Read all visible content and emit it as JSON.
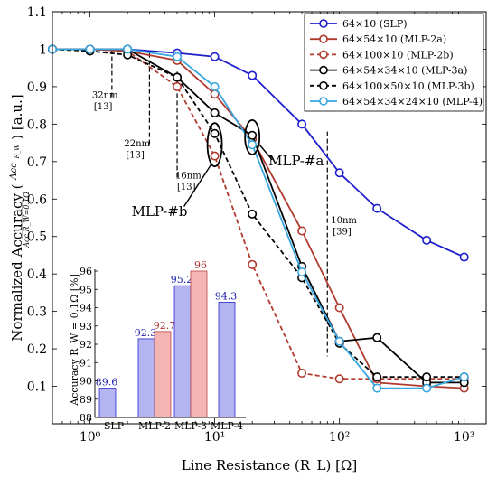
{
  "chart_data": {
    "type": "line",
    "xlabel": "Line Resistance (R_L) [Ω]",
    "ylabel": "Normalized Accuracy",
    "ylabel_unit": "[a.u.]",
    "x_scale": "log",
    "xlim": [
      0.5,
      1500
    ],
    "ylim": [
      0,
      1.1
    ],
    "x_ticks": [
      1,
      10,
      100,
      1000
    ],
    "x_tick_labels": [
      "10⁰",
      "10¹",
      "10²",
      "10³"
    ],
    "y_ticks": [
      0,
      0.1,
      0.2,
      0.3,
      0.4,
      0.5,
      0.6,
      0.7,
      0.8,
      0.9,
      1,
      1.1
    ],
    "y_tick_labels": [
      "",
      "0.1",
      "0.2",
      "0.3",
      "0.4",
      "0.5",
      "0.6",
      "0.7",
      "0.8",
      "0.9",
      "1",
      "1.1"
    ],
    "legend_position": "top-right",
    "x": [
      0.5,
      1,
      2,
      5,
      10,
      20,
      50,
      100,
      200,
      500,
      1000
    ],
    "series": [
      {
        "name": "64×10 (SLP)",
        "color": "#1f1fcc",
        "dash": "solid",
        "values": [
          1.0,
          1.0,
          1.0,
          0.99,
          0.98,
          0.93,
          0.8,
          0.67,
          0.575,
          0.49,
          0.445
        ]
      },
      {
        "name": "64×54×10 (MLP-2a)",
        "color": "#b03a2e",
        "dash": "solid",
        "values": [
          1.0,
          1.0,
          0.995,
          0.97,
          0.88,
          0.76,
          0.515,
          0.31,
          0.11,
          0.1,
          0.095
        ]
      },
      {
        "name": "64×100×10 (MLP-2b)",
        "color": "#b03a2e",
        "dash": "dashed",
        "values": [
          1.0,
          1.0,
          0.995,
          0.9,
          0.715,
          0.425,
          0.135,
          0.12,
          0.12,
          0.12,
          0.12
        ]
      },
      {
        "name": "64×54×34×10 (MLP-3a)",
        "color": "#000000",
        "dash": "solid",
        "values": [
          1.0,
          1.0,
          1.0,
          0.925,
          0.83,
          0.77,
          0.42,
          0.22,
          0.23,
          0.11,
          0.11
        ]
      },
      {
        "name": "64×100×50×10 (MLP-3b)",
        "color": "#000000",
        "dash": "dashed",
        "values": [
          1.0,
          0.995,
          0.985,
          0.925,
          0.775,
          0.56,
          0.39,
          0.215,
          0.125,
          0.125,
          0.125
        ]
      },
      {
        "name": "64×54×34×24×10 (MLP-4)",
        "color": "#3aa6e0",
        "dash": "solid",
        "values": [
          1.0,
          1.0,
          1.0,
          0.98,
          0.9,
          0.745,
          0.405,
          0.22,
          0.095,
          0.095,
          0.125
        ]
      }
    ],
    "annotations": [
      {
        "label": "32nm",
        "ref": "[13]",
        "x": 1.5,
        "y_from": 1.0,
        "y_to": 0.87
      },
      {
        "label": "22nm",
        "ref": "[13]",
        "x": 3,
        "y_from": 0.99,
        "y_to": 0.74
      },
      {
        "label": "16nm",
        "ref": "[13]",
        "x": 5,
        "y_from": 0.94,
        "y_to": 0.65
      },
      {
        "label": "10nm",
        "ref": "[39]",
        "x": 80,
        "y_from": 0.78,
        "y_to": 0.18
      }
    ],
    "callouts": [
      {
        "label": "MLP-#a",
        "x": 20,
        "y": 0.765
      },
      {
        "label": "MLP-#b",
        "x": 10,
        "y": 0.745
      }
    ],
    "inset": {
      "type": "bar",
      "ylabel": "Accuracy  R_W = 0.1Ω [%]",
      "ylim": [
        88,
        96
      ],
      "y_ticks": [
        88,
        89,
        90,
        91,
        92,
        93,
        94,
        95,
        96
      ],
      "categories": [
        "SLP",
        "MLP-2",
        "MLP-3",
        "MLP-4"
      ],
      "bars": [
        {
          "category": "SLP",
          "value": 89.6,
          "label": "89.6",
          "variant": "a"
        },
        {
          "category": "MLP-2",
          "value": 92.3,
          "label": "92.3",
          "variant": "a"
        },
        {
          "category": "MLP-2",
          "value": 92.7,
          "label": "92.7",
          "variant": "b"
        },
        {
          "category": "MLP-3",
          "value": 95.2,
          "label": "95.2",
          "variant": "a"
        },
        {
          "category": "MLP-3",
          "value": 96,
          "label": "96",
          "variant": "b"
        },
        {
          "category": "MLP-4",
          "value": 94.3,
          "label": "94.3",
          "variant": "a"
        }
      ],
      "colors": {
        "a_fill": "#b4b4f0",
        "a_stroke": "#2a2ad0",
        "b_fill": "#f4b4b4",
        "b_stroke": "#c04040",
        "a_label": "#2020b0",
        "b_label": "#b03030"
      }
    }
  }
}
